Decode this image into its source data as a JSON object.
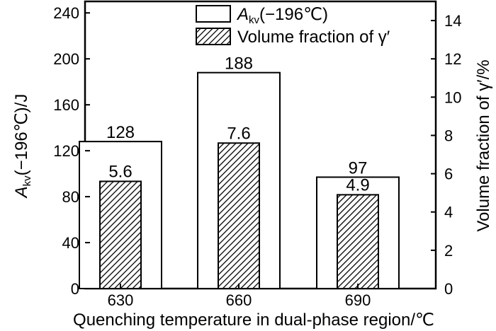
{
  "chart_data": {
    "type": "bar",
    "categories": [
      "630",
      "660",
      "690"
    ],
    "series": [
      {
        "name": "Akv(−196℃)",
        "axis": "left",
        "style": "white",
        "values": [
          128,
          188,
          97
        ],
        "labels": [
          "128",
          "188",
          "97"
        ]
      },
      {
        "name": "Volume fraction of γ′",
        "axis": "right",
        "style": "hatched",
        "values": [
          5.6,
          7.6,
          4.9
        ],
        "labels": [
          "5.6",
          "7.6",
          "4.9"
        ]
      }
    ],
    "xlabel": "Quenching temperature in dual-phase region/℃",
    "ylabel_left": {
      "main": "A",
      "sub": "kv",
      "rest": "(−196℃)/J"
    },
    "ylabel_right": "Volume fraction of γ′/%",
    "legend": {
      "position": "top-center",
      "entries": [
        {
          "main": "A",
          "sub": "kv",
          "rest": "(−196℃)"
        },
        {
          "main": "Volume fraction of γ′",
          "sub": "",
          "rest": ""
        }
      ]
    },
    "ylim_left": [
      0,
      250
    ],
    "ylim_right": [
      0,
      15
    ],
    "yticks_left": [
      "0",
      "40",
      "80",
      "120",
      "160",
      "200",
      "240"
    ],
    "yticks_right": [
      "0",
      "2",
      "4",
      "6",
      "8",
      "10",
      "12",
      "14"
    ],
    "grid": false
  }
}
